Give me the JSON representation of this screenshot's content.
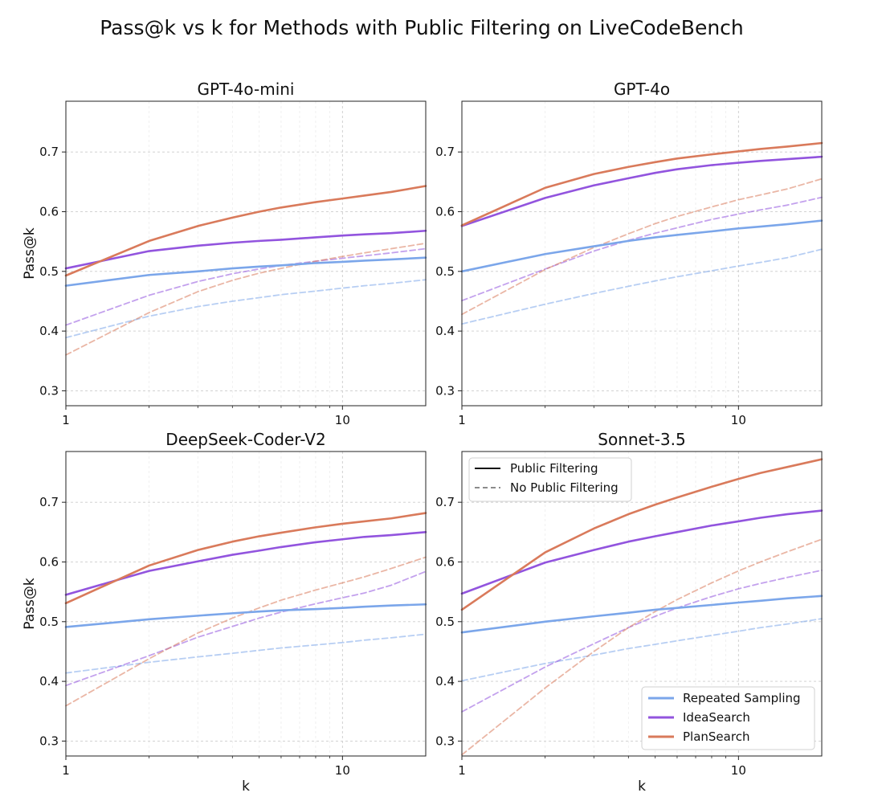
{
  "figure_title": "Pass@k vs k for Methods with Public Filtering on LiveCodeBench",
  "colors": {
    "Repeated Sampling": "#7ba6ea",
    "IdeaSearch": "#9254de",
    "PlanSearch": "#d97a5b"
  },
  "style_legend": {
    "solid": "Public Filtering",
    "dashed": "No Public Filtering"
  },
  "chart_data": [
    {
      "type": "line",
      "title": "GPT-4o-mini",
      "xlabel": "",
      "ylabel": "Pass@k",
      "xscale": "log",
      "xlim": [
        1,
        20
      ],
      "ylim": [
        0.275,
        0.785
      ],
      "xticks": [
        1,
        10
      ],
      "yticks": [
        0.3,
        0.4,
        0.5,
        0.6,
        0.7
      ],
      "grid": true,
      "x": [
        1,
        2,
        3,
        4,
        5,
        6,
        8,
        10,
        12,
        15,
        20
      ],
      "series": [
        {
          "name": "Repeated Sampling",
          "style": "solid",
          "values": [
            0.476,
            0.494,
            0.5,
            0.505,
            0.508,
            0.51,
            0.514,
            0.516,
            0.518,
            0.52,
            0.523
          ]
        },
        {
          "name": "IdeaSearch",
          "style": "solid",
          "values": [
            0.505,
            0.534,
            0.543,
            0.548,
            0.551,
            0.553,
            0.557,
            0.56,
            0.562,
            0.564,
            0.568
          ]
        },
        {
          "name": "PlanSearch",
          "style": "solid",
          "values": [
            0.493,
            0.551,
            0.576,
            0.59,
            0.6,
            0.607,
            0.616,
            0.622,
            0.627,
            0.633,
            0.643
          ]
        },
        {
          "name": "Repeated Sampling",
          "style": "dashed",
          "values": [
            0.389,
            0.425,
            0.441,
            0.45,
            0.456,
            0.461,
            0.467,
            0.472,
            0.476,
            0.48,
            0.486
          ]
        },
        {
          "name": "IdeaSearch",
          "style": "dashed",
          "values": [
            0.41,
            0.46,
            0.483,
            0.496,
            0.504,
            0.51,
            0.517,
            0.522,
            0.526,
            0.531,
            0.538
          ]
        },
        {
          "name": "PlanSearch",
          "style": "dashed",
          "values": [
            0.36,
            0.431,
            0.466,
            0.485,
            0.497,
            0.505,
            0.517,
            0.525,
            0.531,
            0.538,
            0.547
          ]
        }
      ]
    },
    {
      "type": "line",
      "title": "GPT-4o",
      "xlabel": "",
      "ylabel": "",
      "xscale": "log",
      "xlim": [
        1,
        20
      ],
      "ylim": [
        0.275,
        0.785
      ],
      "xticks": [
        1,
        10
      ],
      "yticks": [
        0.3,
        0.4,
        0.5,
        0.6,
        0.7
      ],
      "grid": true,
      "x": [
        1,
        2,
        3,
        4,
        5,
        6,
        8,
        10,
        12,
        15,
        20
      ],
      "series": [
        {
          "name": "Repeated Sampling",
          "style": "solid",
          "values": [
            0.5,
            0.529,
            0.542,
            0.551,
            0.557,
            0.561,
            0.567,
            0.572,
            0.575,
            0.579,
            0.585
          ]
        },
        {
          "name": "IdeaSearch",
          "style": "solid",
          "values": [
            0.576,
            0.623,
            0.644,
            0.656,
            0.665,
            0.671,
            0.678,
            0.682,
            0.685,
            0.688,
            0.692
          ]
        },
        {
          "name": "PlanSearch",
          "style": "solid",
          "values": [
            0.577,
            0.64,
            0.663,
            0.675,
            0.683,
            0.689,
            0.696,
            0.701,
            0.705,
            0.709,
            0.715
          ]
        },
        {
          "name": "Repeated Sampling",
          "style": "dashed",
          "values": [
            0.412,
            0.445,
            0.463,
            0.475,
            0.484,
            0.491,
            0.501,
            0.509,
            0.515,
            0.523,
            0.537
          ]
        },
        {
          "name": "IdeaSearch",
          "style": "dashed",
          "values": [
            0.451,
            0.504,
            0.534,
            0.552,
            0.564,
            0.573,
            0.587,
            0.596,
            0.603,
            0.611,
            0.624
          ]
        },
        {
          "name": "PlanSearch",
          "style": "dashed",
          "values": [
            0.428,
            0.503,
            0.54,
            0.563,
            0.58,
            0.592,
            0.608,
            0.62,
            0.628,
            0.638,
            0.655
          ]
        }
      ]
    },
    {
      "type": "line",
      "title": "DeepSeek-Coder-V2",
      "xlabel": "k",
      "ylabel": "Pass@k",
      "xscale": "log",
      "xlim": [
        1,
        20
      ],
      "ylim": [
        0.275,
        0.785
      ],
      "xticks": [
        1,
        10
      ],
      "yticks": [
        0.3,
        0.4,
        0.5,
        0.6,
        0.7
      ],
      "grid": true,
      "x": [
        1,
        2,
        3,
        4,
        5,
        6,
        8,
        10,
        12,
        15,
        20
      ],
      "series": [
        {
          "name": "Repeated Sampling",
          "style": "solid",
          "values": [
            0.491,
            0.504,
            0.51,
            0.514,
            0.517,
            0.519,
            0.521,
            0.523,
            0.525,
            0.527,
            0.529
          ]
        },
        {
          "name": "IdeaSearch",
          "style": "solid",
          "values": [
            0.545,
            0.585,
            0.601,
            0.612,
            0.619,
            0.625,
            0.633,
            0.638,
            0.642,
            0.645,
            0.65
          ]
        },
        {
          "name": "PlanSearch",
          "style": "solid",
          "values": [
            0.531,
            0.594,
            0.62,
            0.634,
            0.643,
            0.649,
            0.658,
            0.664,
            0.668,
            0.673,
            0.682
          ]
        },
        {
          "name": "Repeated Sampling",
          "style": "dashed",
          "values": [
            0.414,
            0.432,
            0.441,
            0.447,
            0.452,
            0.456,
            0.461,
            0.465,
            0.469,
            0.473,
            0.479
          ]
        },
        {
          "name": "IdeaSearch",
          "style": "dashed",
          "values": [
            0.393,
            0.443,
            0.474,
            0.492,
            0.506,
            0.516,
            0.53,
            0.54,
            0.548,
            0.561,
            0.584
          ]
        },
        {
          "name": "PlanSearch",
          "style": "dashed",
          "values": [
            0.359,
            0.438,
            0.481,
            0.506,
            0.523,
            0.536,
            0.553,
            0.565,
            0.575,
            0.589,
            0.608
          ]
        }
      ]
    },
    {
      "type": "line",
      "title": "Sonnet-3.5",
      "xlabel": "k",
      "ylabel": "",
      "xscale": "log",
      "xlim": [
        1,
        20
      ],
      "ylim": [
        0.275,
        0.785
      ],
      "xticks": [
        1,
        10
      ],
      "yticks": [
        0.3,
        0.4,
        0.5,
        0.6,
        0.7
      ],
      "grid": true,
      "legend": "style (solid / dashed) top-left; methods bottom-right",
      "x": [
        1,
        2,
        3,
        4,
        5,
        6,
        8,
        10,
        12,
        15,
        20
      ],
      "series": [
        {
          "name": "Repeated Sampling",
          "style": "solid",
          "values": [
            0.482,
            0.5,
            0.509,
            0.515,
            0.52,
            0.523,
            0.528,
            0.532,
            0.535,
            0.539,
            0.543
          ]
        },
        {
          "name": "IdeaSearch",
          "style": "solid",
          "values": [
            0.547,
            0.599,
            0.62,
            0.634,
            0.643,
            0.65,
            0.661,
            0.668,
            0.674,
            0.68,
            0.686
          ]
        },
        {
          "name": "PlanSearch",
          "style": "solid",
          "values": [
            0.52,
            0.616,
            0.656,
            0.68,
            0.696,
            0.708,
            0.726,
            0.739,
            0.749,
            0.759,
            0.772
          ]
        },
        {
          "name": "Repeated Sampling",
          "style": "dashed",
          "values": [
            0.401,
            0.43,
            0.444,
            0.455,
            0.462,
            0.468,
            0.477,
            0.484,
            0.49,
            0.496,
            0.505
          ]
        },
        {
          "name": "IdeaSearch",
          "style": "dashed",
          "values": [
            0.349,
            0.424,
            0.463,
            0.49,
            0.509,
            0.523,
            0.542,
            0.555,
            0.564,
            0.574,
            0.586
          ]
        },
        {
          "name": "PlanSearch",
          "style": "dashed",
          "values": [
            0.277,
            0.389,
            0.45,
            0.49,
            0.517,
            0.537,
            0.565,
            0.585,
            0.6,
            0.617,
            0.638
          ]
        }
      ]
    }
  ]
}
